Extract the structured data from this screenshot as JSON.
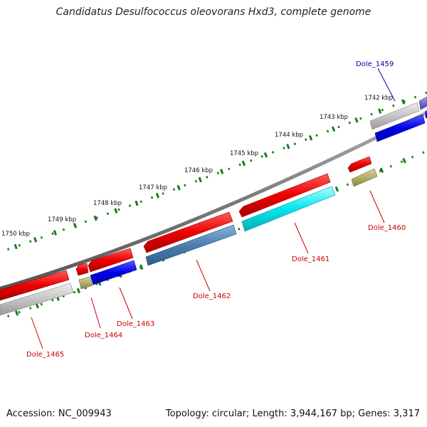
{
  "title": "Candidatus Desulfococcus oleovorans Hxd3, complete genome",
  "footer": {
    "accession_label": "Accession: NC_009943",
    "summary": "Topology: circular; Length: 3,944,167 bp; Genes: 3,317"
  },
  "scale": {
    "unit": "kbp",
    "ticks": [
      "1742 kbp",
      "1743 kbp",
      "1744 kbp",
      "1745 kbp",
      "1746 kbp",
      "1747 kbp",
      "1748 kbp",
      "1749 kbp",
      "1750 kbp"
    ]
  },
  "genes": [
    {
      "name": "Dole_1459",
      "strand": "forward",
      "color": "#6666cc"
    },
    {
      "name": "Dole_1460",
      "strand": "reverse",
      "color": "#dd0000"
    },
    {
      "name": "Dole_1461",
      "strand": "reverse",
      "color": "#dd0000"
    },
    {
      "name": "Dole_1462",
      "strand": "reverse",
      "color": "#dd0000"
    },
    {
      "name": "Dole_1463",
      "strand": "reverse",
      "color": "#dd0000"
    },
    {
      "name": "Dole_1464",
      "strand": "reverse",
      "color": "#dd0000"
    },
    {
      "name": "Dole_1465",
      "strand": "forward",
      "color": "#dd0000"
    }
  ],
  "colors": {
    "backbone": "#808080",
    "tick": "#1a7a1a",
    "label_red": "#cc0000",
    "label_blue": "#0000aa"
  }
}
